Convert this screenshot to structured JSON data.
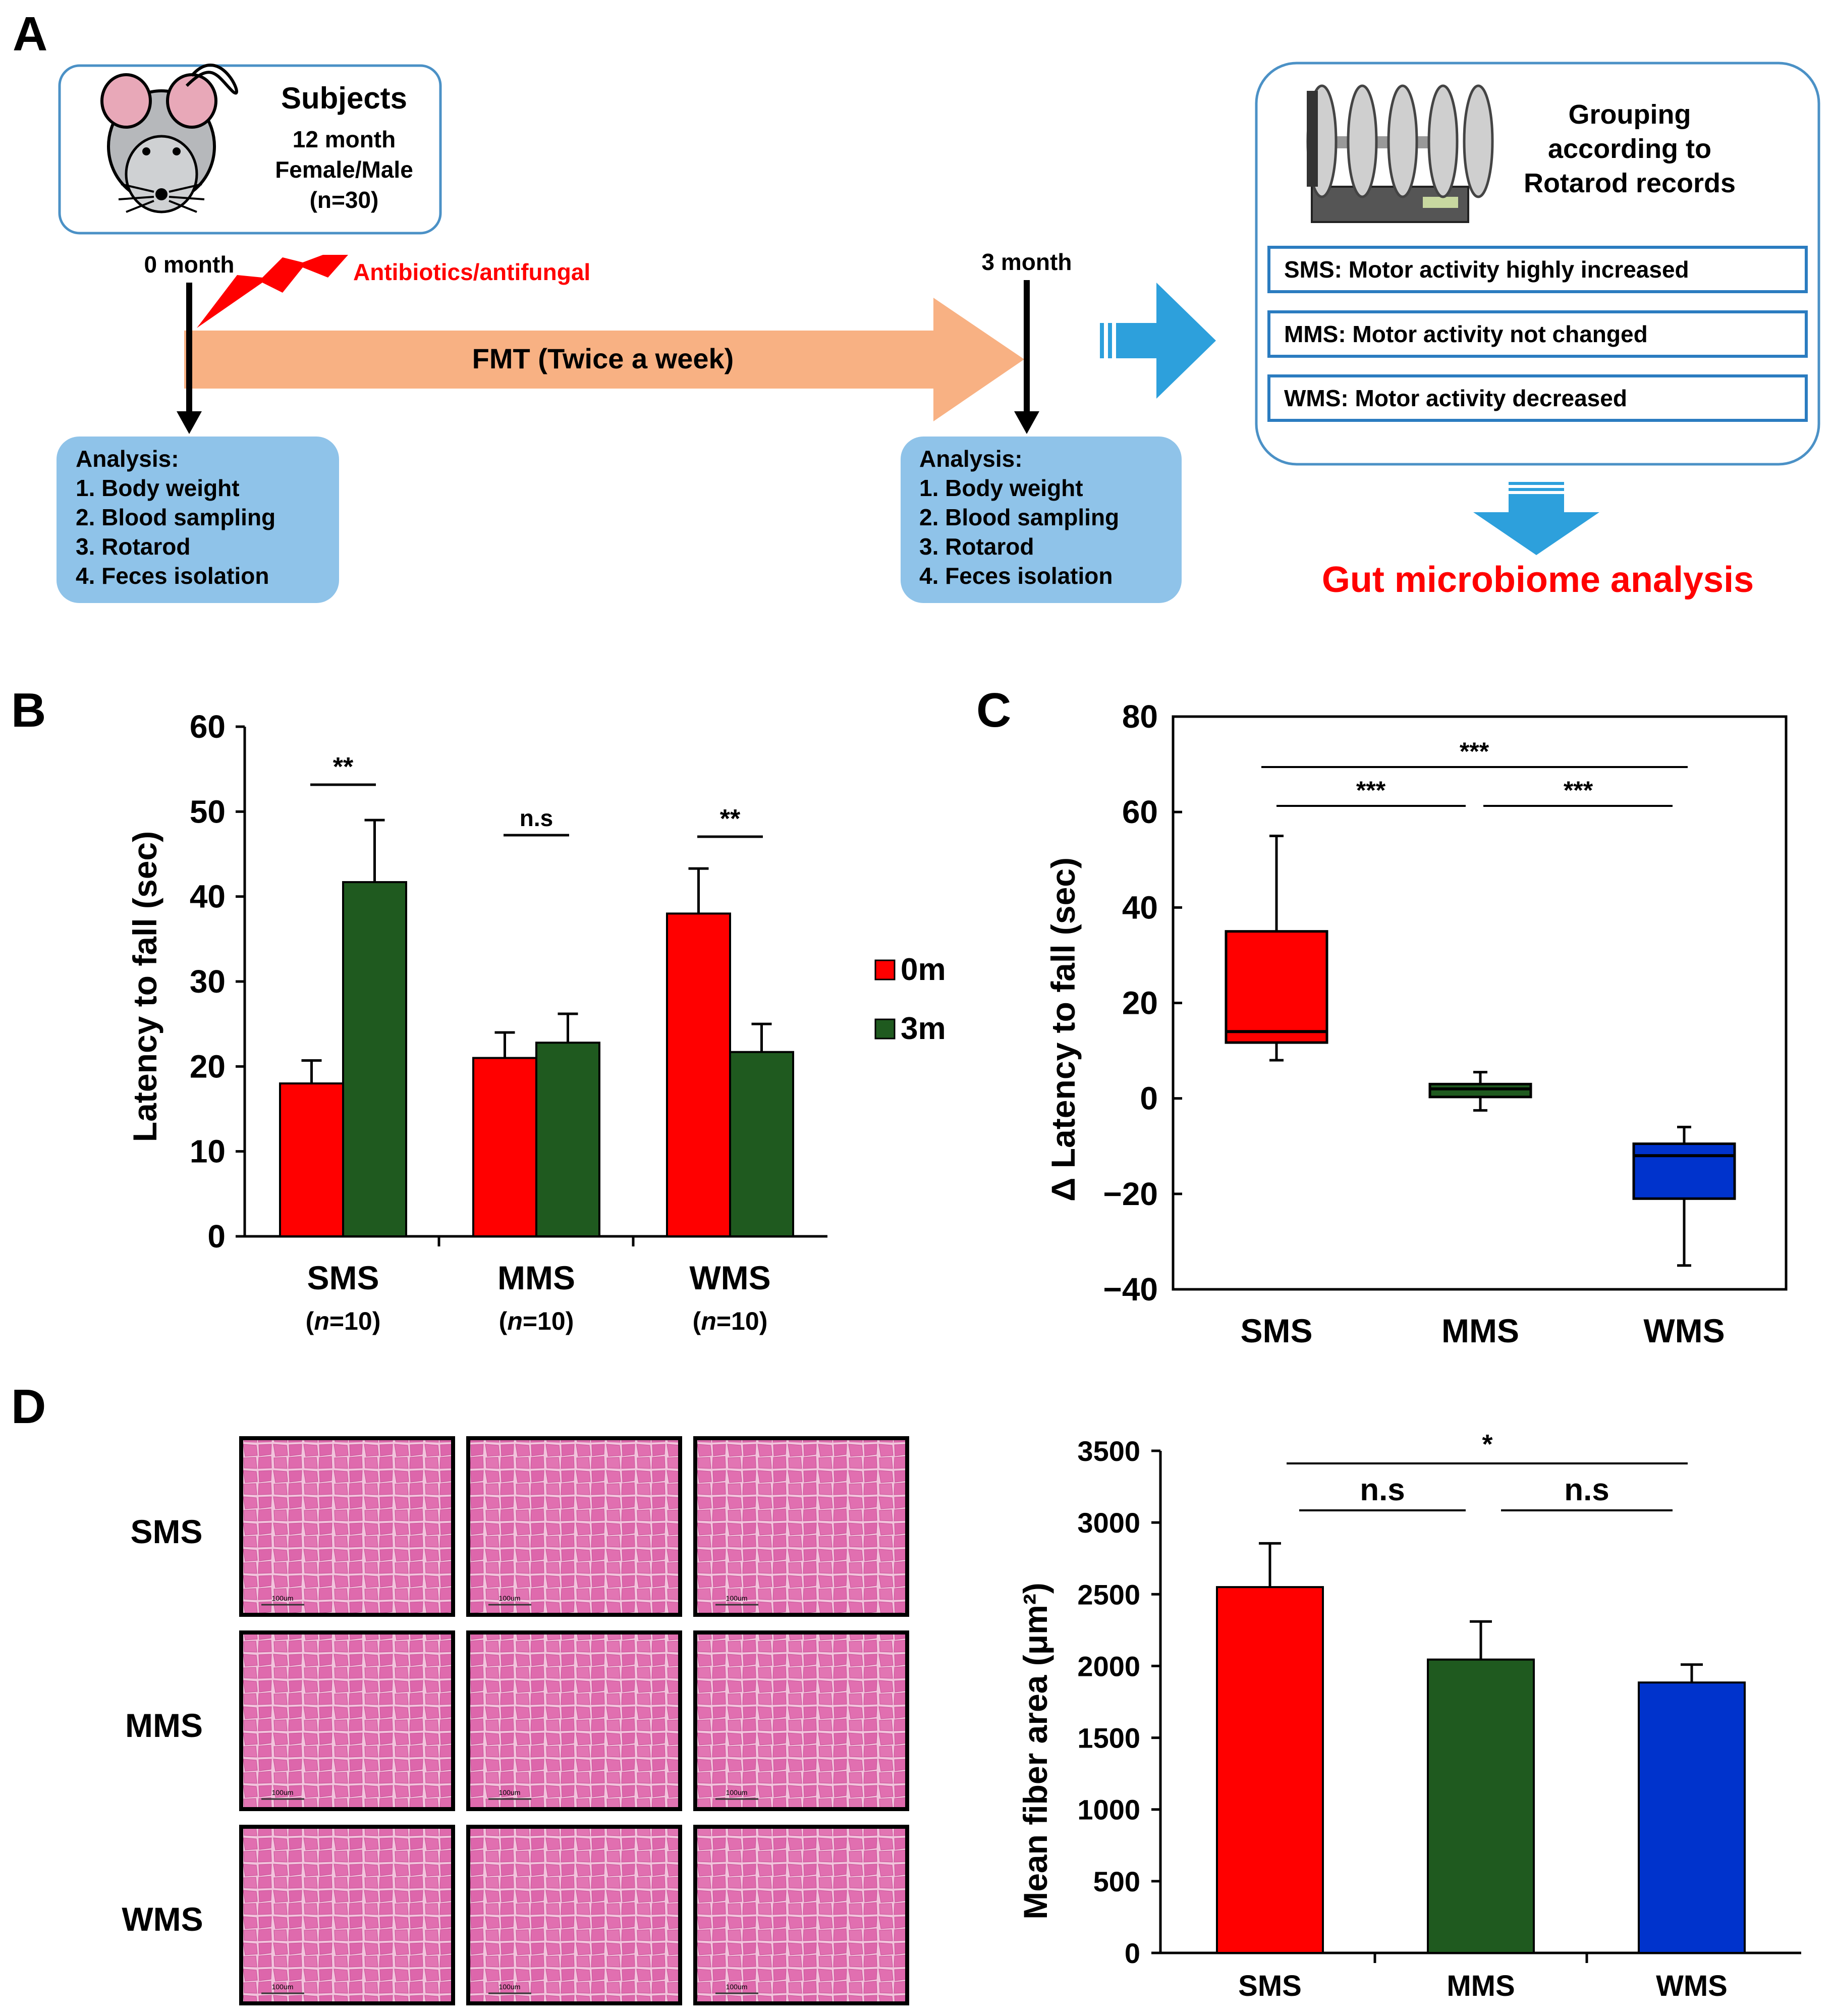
{
  "colors": {
    "red": "#ff0000",
    "green": "#1f5a1f",
    "blue": "#0033cc",
    "salmon": "#f8b183",
    "lightblue": "#8fc3e9",
    "arrowblue": "#2da0dc"
  },
  "panelA": {
    "label": "A",
    "subjects": {
      "title": "Subjects",
      "line1": "12 month",
      "line2": "Female/Male",
      "line3": "(n=30)"
    },
    "t0": "0 month",
    "t3": "3 month",
    "antibiotics": "Antibiotics/antifungal",
    "fmt": "FMT (Twice a week)",
    "analysis": {
      "title": "Analysis:",
      "items": [
        "1. Body weight",
        "2. Blood sampling",
        "3. Rotarod",
        "4. Feces isolation"
      ]
    },
    "grouping": {
      "line1": "Grouping",
      "line2": "according to",
      "line3": "Rotarod records"
    },
    "groups": [
      "SMS: Motor activity highly increased",
      "MMS: Motor activity not changed",
      "WMS: Motor activity decreased"
    ],
    "gut": "Gut microbiome analysis"
  },
  "chart_data": [
    {
      "panel": "B",
      "type": "bar",
      "ylabel": "Latency to fall (sec)",
      "ylim": [
        0,
        60
      ],
      "yticks": [
        "0",
        "10",
        "20",
        "30",
        "40",
        "50",
        "60"
      ],
      "categories": [
        "SMS",
        "MMS",
        "WMS"
      ],
      "ns": [
        "(n=10)",
        "(n=10)",
        "(n=10)"
      ],
      "n_italic": "n",
      "n_value": "=10",
      "series": [
        {
          "name": "0m",
          "values": [
            18,
            21,
            38
          ],
          "errors": [
            2.7,
            3.0,
            5.3
          ]
        },
        {
          "name": "3m",
          "values": [
            41.7,
            22.8,
            21.7
          ],
          "errors": [
            7.3,
            3.4,
            3.3
          ]
        }
      ],
      "significance": [
        "**",
        "n.s",
        "**"
      ]
    },
    {
      "panel": "C",
      "type": "box",
      "ylabel": "Δ Latency to fall (sec)",
      "ylim": [
        -40,
        80
      ],
      "yticks": [
        "−40",
        "−20",
        "0",
        "20",
        "40",
        "60",
        "80"
      ],
      "categories": [
        "SMS",
        "MMS",
        "WMS"
      ],
      "boxes": [
        {
          "min": 8,
          "q1": 11.7,
          "median": 14,
          "q3": 35,
          "max": 55
        },
        {
          "min": -2.5,
          "q1": 0.3,
          "median": 2,
          "q3": 3,
          "max": 5.5
        },
        {
          "min": -35,
          "q1": -21,
          "median": -12,
          "q3": -9.5,
          "max": -6
        }
      ],
      "significance": [
        "***",
        "***",
        "***"
      ]
    },
    {
      "panel": "D",
      "type": "bar",
      "ylabel": "Mean fiber area (μm²)",
      "ylim": [
        0,
        3500
      ],
      "yticks": [
        "0",
        "500",
        "1000",
        "1500",
        "2000",
        "2500",
        "3000",
        "3500"
      ],
      "categories": [
        "SMS",
        "MMS",
        "WMS"
      ],
      "values": [
        2550,
        2045,
        1885
      ],
      "errors": [
        305,
        265,
        125
      ],
      "significance": [
        "*",
        "n.s",
        "n.s"
      ]
    }
  ],
  "panelD": {
    "label": "D",
    "rows": [
      "SMS",
      "MMS",
      "WMS"
    ],
    "scalebar": "100um"
  },
  "panelB_label": "B",
  "panelC_label": "C"
}
